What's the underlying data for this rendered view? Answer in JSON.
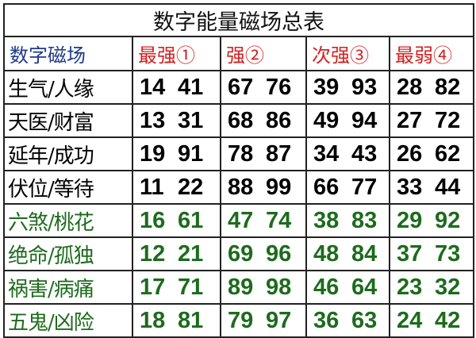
{
  "title": "数字能量磁场总表",
  "headers": [
    "数字磁场",
    "最强①",
    "强②",
    "次强③",
    "最弱④"
  ],
  "colors": {
    "header_first": "#1f3a8a",
    "header_levels": "#d42020",
    "auspicious": "#000000",
    "inauspicious": "#1d6b1d"
  },
  "rows": [
    {
      "name": "生气/人缘",
      "type": "auspicious",
      "cells": [
        [
          "14",
          "41"
        ],
        [
          "67",
          "76"
        ],
        [
          "39",
          "93"
        ],
        [
          "28",
          "82"
        ]
      ]
    },
    {
      "name": "天医/财富",
      "type": "auspicious",
      "cells": [
        [
          "13",
          "31"
        ],
        [
          "68",
          "86"
        ],
        [
          "49",
          "94"
        ],
        [
          "27",
          "72"
        ]
      ]
    },
    {
      "name": "延年/成功",
      "type": "auspicious",
      "cells": [
        [
          "19",
          "91"
        ],
        [
          "78",
          "87"
        ],
        [
          "34",
          "43"
        ],
        [
          "26",
          "62"
        ]
      ]
    },
    {
      "name": "伏位/等待",
      "type": "auspicious",
      "cells": [
        [
          "11",
          "22"
        ],
        [
          "88",
          "99"
        ],
        [
          "66",
          "77"
        ],
        [
          "33",
          "44"
        ]
      ]
    },
    {
      "name": "六煞/桃花",
      "type": "inauspicious",
      "cells": [
        [
          "16",
          "61"
        ],
        [
          "47",
          "74"
        ],
        [
          "38",
          "83"
        ],
        [
          "29",
          "92"
        ]
      ]
    },
    {
      "name": "绝命/孤独",
      "type": "inauspicious",
      "cells": [
        [
          "12",
          "21"
        ],
        [
          "69",
          "96"
        ],
        [
          "48",
          "84"
        ],
        [
          "37",
          "73"
        ]
      ]
    },
    {
      "name": "祸害/病痛",
      "type": "inauspicious",
      "cells": [
        [
          "17",
          "71"
        ],
        [
          "89",
          "98"
        ],
        [
          "46",
          "64"
        ],
        [
          "23",
          "32"
        ]
      ]
    },
    {
      "name": "五鬼/凶险",
      "type": "inauspicious",
      "cells": [
        [
          "18",
          "81"
        ],
        [
          "79",
          "97"
        ],
        [
          "36",
          "63"
        ],
        [
          "24",
          "42"
        ]
      ]
    }
  ]
}
